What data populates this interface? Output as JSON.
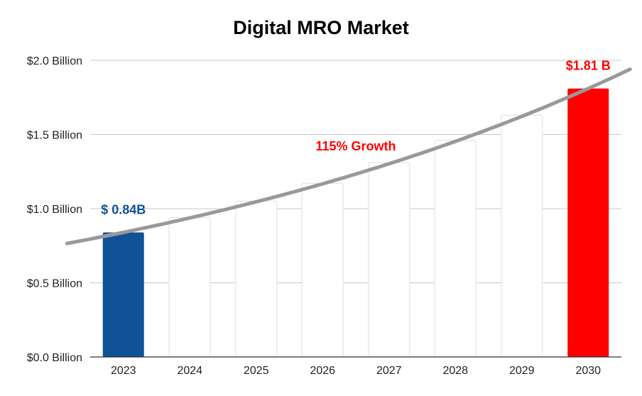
{
  "chart_data": {
    "type": "bar",
    "title": "Digital MRO Market",
    "xlabel": "",
    "ylabel": "",
    "categories": [
      "2023",
      "2024",
      "2025",
      "2026",
      "2027",
      "2028",
      "2029",
      "2030"
    ],
    "values": [
      0.84,
      0.94,
      1.05,
      1.17,
      1.31,
      1.46,
      1.63,
      1.81
    ],
    "ylim": [
      0,
      2.0
    ],
    "yticks": [
      0,
      0.5,
      1.0,
      1.5,
      2.0
    ],
    "ytick_labels": [
      "$0.0 Billion",
      "$0.5 Billion",
      "$1.0 Billion",
      "$1.5 Billion",
      "$2.0 Billion"
    ],
    "grid": true,
    "bar_colors": [
      "#0f5296",
      "#ffffff",
      "#ffffff",
      "#ffffff",
      "#ffffff",
      "#ffffff",
      "#ffffff",
      "#ff0000"
    ],
    "bar_outline_color": "#e4e8f2",
    "trend_line": {
      "x": [
        "2023",
        "2030"
      ],
      "y": [
        0.84,
        1.81
      ],
      "color": "#999999"
    },
    "annotations": [
      {
        "text": "$ 0.84B",
        "color": "#0f5296",
        "category": "2023",
        "value": 0.84
      },
      {
        "text": "115% Growth",
        "color": "#ff0000",
        "category": "2026.5",
        "value": 1.42
      },
      {
        "text": "$1.81 B",
        "color": "#ff0000",
        "category": "2030",
        "value": 1.81
      }
    ]
  }
}
